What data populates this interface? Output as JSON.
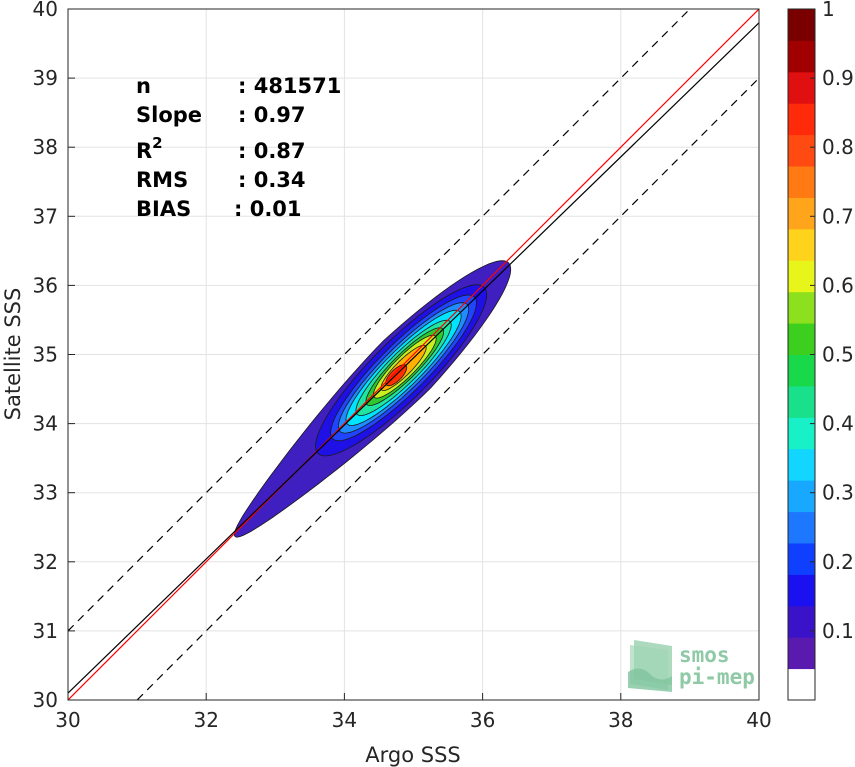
{
  "chart_data": {
    "type": "contour",
    "xlabel": "Argo SSS",
    "ylabel": "Satellite SSS",
    "xlim": [
      30,
      40
    ],
    "ylim": [
      30,
      40
    ],
    "x_ticks": [
      "30",
      "32",
      "34",
      "36",
      "38",
      "40"
    ],
    "y_ticks": [
      "30",
      "31",
      "32",
      "33",
      "34",
      "35",
      "36",
      "37",
      "38",
      "39",
      "40"
    ],
    "grid": true,
    "stats": [
      {
        "name": "n",
        "value": ": 481571"
      },
      {
        "name": "Slope",
        "value": ": 0.97"
      },
      {
        "name": "R",
        "sup": "2",
        "value": ": 0.87"
      },
      {
        "name": "RMS",
        "value": ": 0.34"
      },
      {
        "name": "BIAS",
        "value": ": 0.01"
      }
    ],
    "lines": [
      {
        "role": "identity",
        "color": "#ff0000",
        "x": [
          30,
          40
        ],
        "y": [
          30,
          40
        ]
      },
      {
        "role": "regression",
        "color": "#000000",
        "x": [
          30,
          40
        ],
        "y": [
          30.1,
          39.8
        ]
      },
      {
        "role": "upper-bound",
        "color": "#000000",
        "dash": true,
        "x": [
          30,
          40
        ],
        "y": [
          31,
          41
        ]
      },
      {
        "role": "lower-bound",
        "color": "#000000",
        "dash": true,
        "x": [
          30,
          40
        ],
        "y": [
          29,
          39
        ]
      }
    ],
    "density": {
      "center": [
        34.75,
        34.7
      ],
      "angle_deg": 45,
      "levels": [
        0.05,
        0.1,
        0.2,
        0.3,
        0.4,
        0.5,
        0.6,
        0.7,
        0.8,
        0.9
      ],
      "level_colors": [
        "#3f1fbf",
        "#1f10e6",
        "#1f45ff",
        "#1f8cff",
        "#00e5ff",
        "#1fe5a0",
        "#2fc82f",
        "#c8f01f",
        "#ffb000",
        "#ff3000"
      ],
      "extents": [
        {
          "level": 0.05,
          "along": [
            -3.3,
            2.3
          ],
          "across": 0.5
        },
        {
          "level": 0.1,
          "along": [
            -1.6,
            1.8
          ],
          "across": 0.42
        },
        {
          "level": 0.2,
          "along": [
            -1.3,
            1.6
          ],
          "across": 0.35
        },
        {
          "level": 0.3,
          "along": [
            -1.15,
            1.45
          ],
          "across": 0.3
        },
        {
          "level": 0.4,
          "along": [
            -1.0,
            1.3
          ],
          "across": 0.26
        },
        {
          "level": 0.5,
          "along": [
            -0.8,
            1.1
          ],
          "across": 0.22
        },
        {
          "level": 0.6,
          "along": [
            -0.6,
            0.95
          ],
          "across": 0.18
        },
        {
          "level": 0.7,
          "along": [
            -0.45,
            0.8
          ],
          "across": 0.15
        },
        {
          "level": 0.8,
          "along": [
            -0.3,
            0.6
          ],
          "across": 0.11
        },
        {
          "level": 0.9,
          "along": [
            -0.2,
            0.2
          ],
          "across": 0.08
        }
      ]
    },
    "colorbar": {
      "ticks": [
        "0.1",
        "0.2",
        "0.3",
        "0.4",
        "0.5",
        "0.6",
        "0.7",
        "0.8",
        "0.9",
        "1"
      ],
      "colors": [
        "#ffffff",
        "#5a1ab0",
        "#3a12c8",
        "#1b10f0",
        "#1040ff",
        "#1e78ff",
        "#19a8ff",
        "#12d6ff",
        "#18f0c8",
        "#19e08a",
        "#19d84a",
        "#3ccf1e",
        "#8de01e",
        "#e8f51b",
        "#ffd21b",
        "#ffa51b",
        "#ff7a12",
        "#ff4a12",
        "#ff2a0a",
        "#e01010",
        "#a00000",
        "#7a0000"
      ]
    }
  },
  "logo": {
    "line1": "smos",
    "line2": "pi-mep"
  }
}
